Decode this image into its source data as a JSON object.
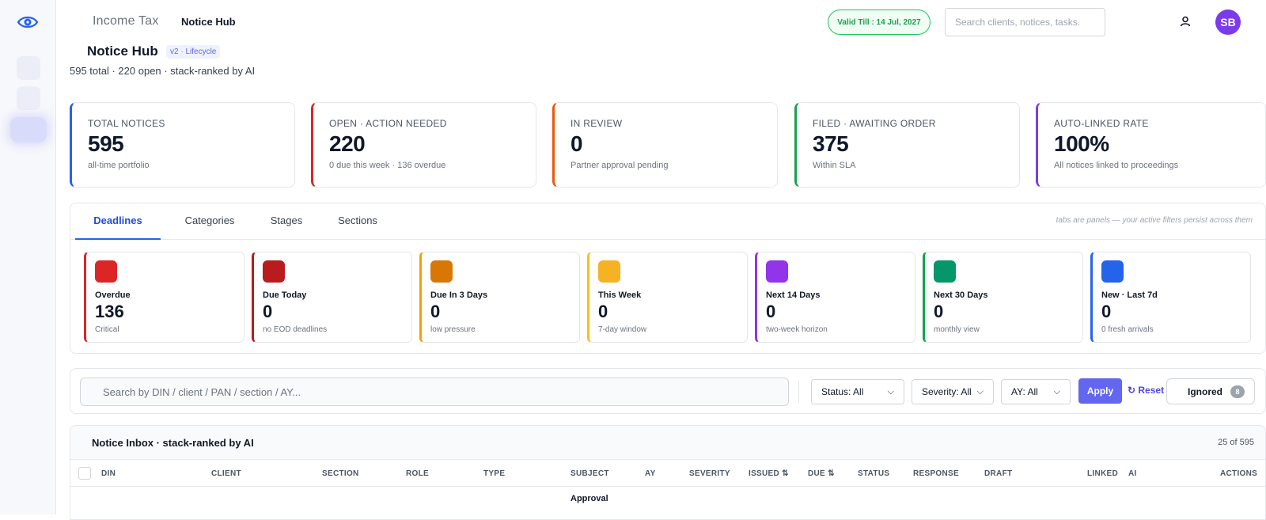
{
  "app": {
    "title": "Income Tax",
    "breadcrumb": "Notice Hub"
  },
  "topbar": {
    "valid_till": "Valid Till : 14 Jul, 2027",
    "search_placeholder": "Search clients, notices, tasks.",
    "avatar_initials": "SB"
  },
  "header": {
    "title": "Notice Hub",
    "version_badge": "v2 · Lifecycle",
    "subtitle": "595 total · 220 open · stack-ranked by AI"
  },
  "kpis": [
    {
      "label": "TOTAL NOTICES",
      "value": "595",
      "sub": "all-time portfolio",
      "color": "#2563eb"
    },
    {
      "label": "OPEN · ACTION NEEDED",
      "value": "220",
      "sub": "0 due this week · 136 overdue",
      "color": "#dc2626"
    },
    {
      "label": "IN REVIEW",
      "value": "0",
      "sub": "Partner approval pending",
      "color": "#ea580c"
    },
    {
      "label": "FILED · AWAITING ORDER",
      "value": "375",
      "sub": "Within SLA",
      "color": "#16a34a"
    },
    {
      "label": "AUTO-LINKED RATE",
      "value": "100%",
      "sub": "All notices linked to proceedings",
      "color": "#7c3aed"
    }
  ],
  "tabs": {
    "items": [
      {
        "label": "Deadlines",
        "active": true
      },
      {
        "label": "Categories"
      },
      {
        "label": "Stages"
      },
      {
        "label": "Sections"
      }
    ],
    "note": "tabs are panels — your active filters persist across them"
  },
  "deadlines": [
    {
      "label": "Overdue",
      "value": "136",
      "sub": "Critical",
      "color": "#dc2626"
    },
    {
      "label": "Due Today",
      "value": "0",
      "sub": "no EOD deadlines",
      "color": "#b91c1c"
    },
    {
      "label": "Due In 3 Days",
      "value": "0",
      "sub": "low pressure",
      "color": "#f59e0b"
    },
    {
      "label": "This Week",
      "value": "0",
      "sub": "7-day window",
      "color": "#fbbf24"
    },
    {
      "label": "Next 14 Days",
      "value": "0",
      "sub": "two-week horizon",
      "color": "#9333ea"
    },
    {
      "label": "Next 30 Days",
      "value": "0",
      "sub": "monthly view",
      "color": "#16a34a"
    },
    {
      "label": "New · Last 7d",
      "value": "0",
      "sub": "0 fresh arrivals",
      "color": "#2563eb"
    }
  ],
  "filters": {
    "search_placeholder": "Search by DIN / client / PAN / section / AY...",
    "status": "Status: All",
    "severity": "Severity: All",
    "ay": "AY: All",
    "apply": "Apply",
    "reset": "↻ Reset",
    "ignored": "Ignored",
    "ignored_count": "8"
  },
  "inbox": {
    "title": "Notice Inbox · stack-ranked by AI",
    "count": "25 of 595",
    "columns": [
      "DIN",
      "CLIENT",
      "SECTION",
      "ROLE",
      "TYPE",
      "SUBJECT",
      "AY",
      "SEVERITY",
      "ISSUED ⇅",
      "DUE ⇅",
      "STATUS",
      "RESPONSE",
      "DRAFT",
      "LINKED",
      "AI",
      "ACTIONS"
    ],
    "first_row_subject": "Approval"
  }
}
